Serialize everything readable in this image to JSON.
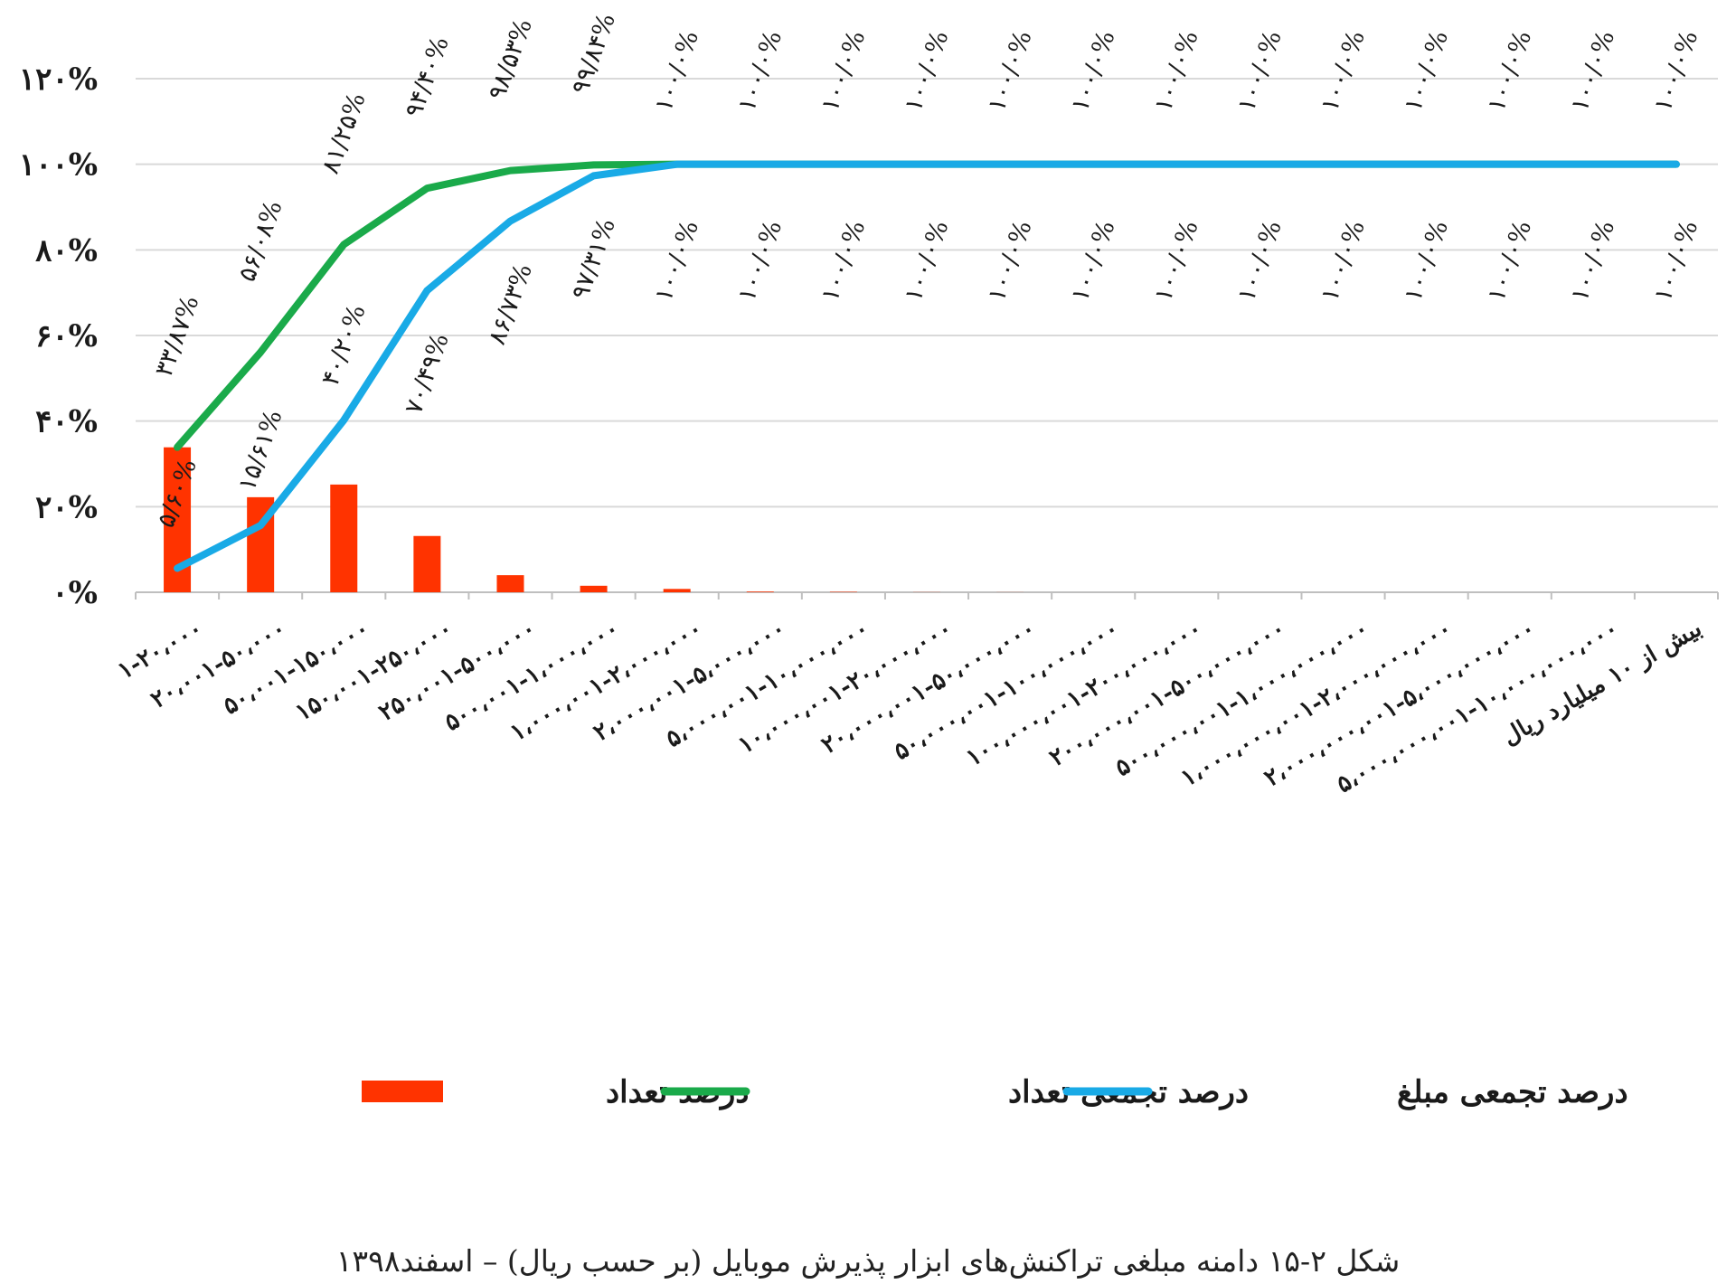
{
  "caption": "شکل ۲-۱۵ دامنه مبلغی تراکنش‌های ابزار پذیرش موبایل (بر حسب ریال) – اسفند۱۳۹۸",
  "colors": {
    "bar": "#ff3300",
    "count_cumulative": "#1aaa4a",
    "amount_cumulative": "#19aae6",
    "grid": "#d9d9d9",
    "text": "#1a1a1a"
  },
  "chart_data": {
    "type": "bar",
    "ylim": [
      0,
      120
    ],
    "yticks": [
      0,
      20,
      40,
      60,
      80,
      100,
      120
    ],
    "ytick_labels": [
      "۰%",
      "۲۰%",
      "۴۰%",
      "۶۰%",
      "۸۰%",
      "۱۰۰%",
      "۱۲۰%"
    ],
    "grid": true,
    "legend_position": "bottom",
    "categories": [
      "۱-۲۰،۰۰۰",
      "۲۰،۰۰۱-۵۰،۰۰۰",
      "۵۰،۰۰۱-۱۵۰،۰۰۰",
      "۱۵۰،۰۰۱-۲۵۰،۰۰۰",
      "۲۵۰،۰۰۱-۵۰۰،۰۰۰",
      "۵۰۰،۰۰۱-۱،۰۰۰،۰۰۰",
      "۱،۰۰۰،۰۰۱-۲،۰۰۰،۰۰۰",
      "۲،۰۰۰،۰۰۱-۵،۰۰۰،۰۰۰",
      "۵،۰۰۰،۰۰۱-۱۰،۰۰۰،۰۰۰",
      "۱۰،۰۰۰،۰۰۱-۲۰،۰۰۰،۰۰۰",
      "۲۰،۰۰۰،۰۰۱-۵۰،۰۰۰،۰۰۰",
      "۵۰،۰۰۰،۰۰۱-۱۰۰،۰۰۰،۰۰۰",
      "۱۰۰،۰۰۰،۰۰۱-۲۰۰،۰۰۰،۰۰۰",
      "۲۰۰،۰۰۰،۰۰۱-۵۰۰،۰۰۰،۰۰۰",
      "۵۰۰،۰۰۰،۰۰۱-۱،۰۰۰،۰۰۰،۰۰۰",
      "۱،۰۰۰،۰۰۰،۰۰۱-۲،۰۰۰،۰۰۰،۰۰۰",
      "۲،۰۰۰،۰۰۰،۰۰۱-۵،۰۰۰،۰۰۰،۰۰۰",
      "۵،۰۰۰،۰۰۰،۰۰۱-۱۰،۰۰۰،۰۰۰،۰۰۰",
      "بیش از ۱۰ میلیارد ریال"
    ],
    "series": [
      {
        "name": "درصد تعداد",
        "type": "bar",
        "color": "#ff3300",
        "values": [
          33.87,
          22.21,
          25.17,
          13.15,
          3.99,
          1.52,
          0.78,
          0.16,
          0.1,
          0.03,
          0.02,
          0.0,
          0.0,
          0.0,
          0.0,
          0.0,
          0.0,
          0.0,
          0.0
        ]
      },
      {
        "name": "درصد تجمعی تعداد",
        "type": "line",
        "color": "#1aaa4a",
        "values": [
          33.87,
          56.08,
          81.25,
          94.4,
          98.53,
          99.84,
          100,
          100,
          100,
          100,
          100,
          100,
          100,
          100,
          100,
          100,
          100,
          100,
          100
        ],
        "labels": [
          "۳۳/۸۷%",
          "۵۶/۰۸%",
          "۸۱/۲۵%",
          "۹۴/۴۰%",
          "۹۸/۵۳%",
          "۹۹/۸۴%",
          "۱۰۰/۰%",
          "۱۰۰/۰%",
          "۱۰۰/۰%",
          "۱۰۰/۰%",
          "۱۰۰/۰%",
          "۱۰۰/۰%",
          "۱۰۰/۰%",
          "۱۰۰/۰%",
          "۱۰۰/۰%",
          "۱۰۰/۰%",
          "۱۰۰/۰%",
          "۱۰۰/۰%",
          "۱۰۰/۰%"
        ]
      },
      {
        "name": "درصد تجمعی مبلغ",
        "type": "line",
        "color": "#19aae6",
        "values": [
          5.6,
          15.61,
          40.2,
          70.49,
          86.73,
          97.31,
          100,
          100,
          100,
          100,
          100,
          100,
          100,
          100,
          100,
          100,
          100,
          100,
          100
        ],
        "labels": [
          "۵/۶۰%",
          "۱۵/۶۱%",
          "۴۰/۲۰%",
          "۷۰/۴۹%",
          "۸۶/۷۳%",
          "۹۷/۳۱%",
          "۱۰۰/۰%",
          "۱۰۰/۰%",
          "۱۰۰/۰%",
          "۱۰۰/۰%",
          "۱۰۰/۰%",
          "۱۰۰/۰%",
          "۱۰۰/۰%",
          "۱۰۰/۰%",
          "۱۰۰/۰%",
          "۱۰۰/۰%",
          "۱۰۰/۰%",
          "۱۰۰/۰%",
          "۱۰۰/۰%"
        ]
      }
    ],
    "legend": [
      {
        "label": "درصد تعداد",
        "series": 0
      },
      {
        "label": "درصد تجمعی تعداد",
        "series": 1
      },
      {
        "label": "درصد تجمعی مبلغ",
        "series": 2
      }
    ]
  }
}
